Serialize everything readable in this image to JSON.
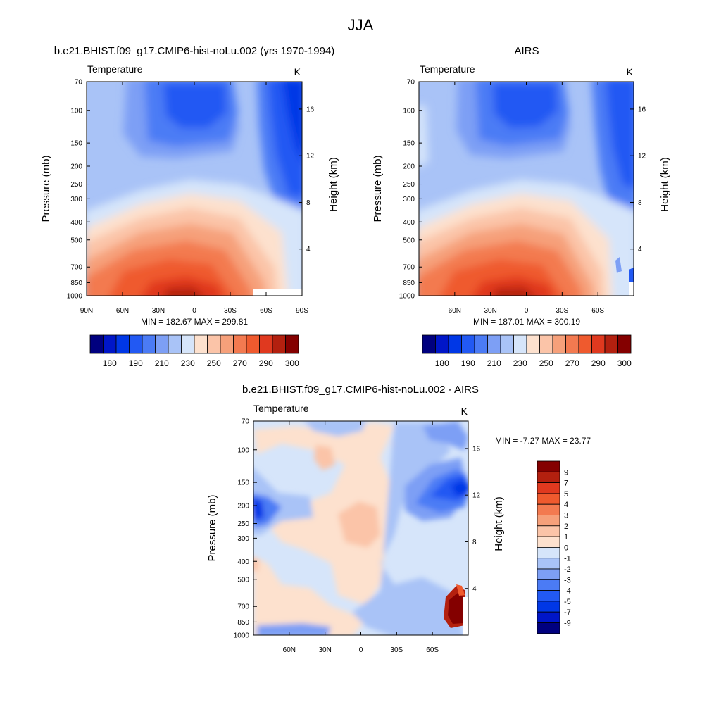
{
  "figure": {
    "title": "JJA"
  },
  "colors": {
    "field": [
      "#00007f",
      "#0016c8",
      "#0037e6",
      "#2259f3",
      "#4b7bf5",
      "#7d9ff5",
      "#a9c3f7",
      "#d6e5fa",
      "#fde1ce",
      "#fbc4a8",
      "#f6a07a",
      "#f37a50",
      "#ef5a2e",
      "#e0391f",
      "#b3200f",
      "#840000"
    ],
    "diff": [
      "#00007f",
      "#0016c8",
      "#0037e6",
      "#2259f3",
      "#4b7bf5",
      "#7d9ff5",
      "#a9c3f7",
      "#d6e5fa",
      "#fde1ce",
      "#fbc4a8",
      "#f6a07a",
      "#f37a50",
      "#ef5a2e",
      "#e0391f",
      "#b3200f",
      "#840000"
    ]
  },
  "chart_data": [
    {
      "type": "heatmap",
      "title": "b.e21.BHIST.f09_g17.CMIP6-hist-noLu.002 (yrs 1970-1994)",
      "left_label": "Temperature",
      "units": "K",
      "ylabel": "Pressure (mb)",
      "y2label": "Height (km)",
      "yticks": [
        "70",
        "100",
        "150",
        "200",
        "250",
        "300",
        "400",
        "500",
        "700",
        "850",
        "1000"
      ],
      "y2ticks": [
        "16",
        "12",
        "8",
        "4"
      ],
      "xticks": [
        "90N",
        "60N",
        "30N",
        "0",
        "30S",
        "60S",
        "90S"
      ],
      "minmax": "MIN = 182.67  MAX = 299.81",
      "colorbar_labels": [
        "180",
        "190",
        "210",
        "230",
        "250",
        "270",
        "290",
        "300"
      ]
    },
    {
      "type": "heatmap",
      "title": "AIRS",
      "left_label": "Temperature",
      "units": "K",
      "ylabel": "Pressure (mb)",
      "y2label": "Height (km)",
      "yticks": [
        "70",
        "100",
        "150",
        "200",
        "250",
        "300",
        "400",
        "500",
        "700",
        "850",
        "1000"
      ],
      "y2ticks": [
        "16",
        "12",
        "8",
        "4"
      ],
      "xticks": [
        "60N",
        "30N",
        "0",
        "30S",
        "60S"
      ],
      "minmax": "MIN = 187.01  MAX = 300.19",
      "colorbar_labels": [
        "180",
        "190",
        "210",
        "230",
        "250",
        "270",
        "290",
        "300"
      ]
    },
    {
      "type": "heatmap",
      "title": "b.e21.BHIST.f09_g17.CMIP6-hist-noLu.002 - AIRS",
      "left_label": "Temperature",
      "units": "K",
      "ylabel": "Pressure (mb)",
      "y2label": "Height (km)",
      "yticks": [
        "70",
        "100",
        "150",
        "200",
        "250",
        "300",
        "400",
        "500",
        "700",
        "850",
        "1000"
      ],
      "y2ticks": [
        "16",
        "12",
        "8",
        "4"
      ],
      "xticks": [
        "60N",
        "30N",
        "0",
        "30S",
        "60S"
      ],
      "minmax": "MIN =  -7.27  MAX =  23.77",
      "colorbar_labels": [
        "9",
        "7",
        "5",
        "4",
        "3",
        "2",
        "1",
        "0",
        "-1",
        "-2",
        "-3",
        "-4",
        "-5",
        "-7",
        "-9"
      ]
    }
  ]
}
